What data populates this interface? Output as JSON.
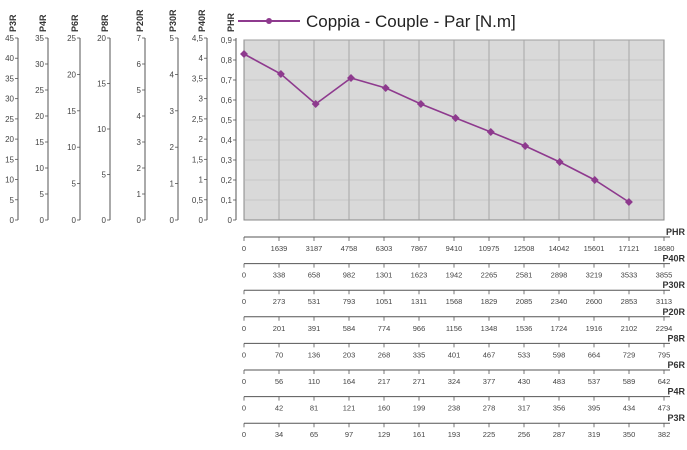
{
  "chart_data": {
    "type": "line",
    "title": "Coppia - Couple - Par [N.m]",
    "series": [
      {
        "name": "Coppia - Couple - Par [N.m]",
        "color": "#8e3a8e",
        "x": [
          0,
          1639,
          3187,
          4758,
          6303,
          7867,
          9410,
          10975,
          12508,
          14042,
          15601,
          17121
        ],
        "y": [
          0.83,
          0.73,
          0.58,
          0.71,
          0.66,
          0.58,
          0.51,
          0.44,
          0.37,
          0.29,
          0.2,
          0.09
        ]
      }
    ],
    "ylim": [
      0,
      0.9
    ],
    "grid": true,
    "left_axes": [
      {
        "name": "P3R",
        "ticks": [
          "45",
          "40",
          "35",
          "30",
          "25",
          "20",
          "15",
          "10",
          "5",
          "0"
        ]
      },
      {
        "name": "P4R",
        "ticks": [
          "35",
          "30",
          "25",
          "20",
          "15",
          "10",
          "5",
          "0"
        ]
      },
      {
        "name": "P6R",
        "ticks": [
          "25",
          "20",
          "15",
          "10",
          "5",
          "0"
        ]
      },
      {
        "name": "P8R",
        "ticks": [
          "20",
          "15",
          "10",
          "5",
          "0"
        ]
      },
      {
        "name": "P20R",
        "ticks": [
          "7",
          "6",
          "5",
          "4",
          "3",
          "2",
          "1",
          "0"
        ]
      },
      {
        "name": "P30R",
        "ticks": [
          "5",
          "4",
          "3",
          "2",
          "1",
          "0"
        ]
      },
      {
        "name": "P40R",
        "ticks": [
          "4,5",
          "4",
          "3,5",
          "3",
          "2,5",
          "2",
          "1,5",
          "1",
          "0,5",
          "0"
        ]
      },
      {
        "name": "PHR",
        "ticks": [
          "0,9",
          "0,8",
          "0,7",
          "0,6",
          "0,5",
          "0,4",
          "0,3",
          "0,2",
          "0,1",
          "0"
        ]
      }
    ],
    "bottom_axes": [
      {
        "name": "PHR",
        "ticks": [
          "0",
          "1639",
          "3187",
          "4758",
          "6303",
          "7867",
          "9410",
          "10975",
          "12508",
          "14042",
          "15601",
          "17121",
          "18680"
        ]
      },
      {
        "name": "P40R",
        "ticks": [
          "0",
          "338",
          "658",
          "982",
          "1301",
          "1623",
          "1942",
          "2265",
          "2581",
          "2898",
          "3219",
          "3533",
          "3855"
        ]
      },
      {
        "name": "P30R",
        "ticks": [
          "0",
          "273",
          "531",
          "793",
          "1051",
          "1311",
          "1568",
          "1829",
          "2085",
          "2340",
          "2600",
          "2853",
          "3113"
        ]
      },
      {
        "name": "P20R",
        "ticks": [
          "0",
          "201",
          "391",
          "584",
          "774",
          "966",
          "1156",
          "1348",
          "1536",
          "1724",
          "1916",
          "2102",
          "2294"
        ]
      },
      {
        "name": "P8R",
        "ticks": [
          "0",
          "70",
          "136",
          "203",
          "268",
          "335",
          "401",
          "467",
          "533",
          "598",
          "664",
          "729",
          "795"
        ]
      },
      {
        "name": "P6R",
        "ticks": [
          "0",
          "56",
          "110",
          "164",
          "217",
          "271",
          "324",
          "377",
          "430",
          "483",
          "537",
          "589",
          "642"
        ]
      },
      {
        "name": "P4R",
        "ticks": [
          "0",
          "42",
          "81",
          "121",
          "160",
          "199",
          "238",
          "278",
          "317",
          "356",
          "395",
          "434",
          "473"
        ]
      },
      {
        "name": "P3R",
        "ticks": [
          "0",
          "34",
          "65",
          "97",
          "129",
          "161",
          "193",
          "225",
          "256",
          "287",
          "319",
          "350",
          "382"
        ]
      }
    ]
  }
}
